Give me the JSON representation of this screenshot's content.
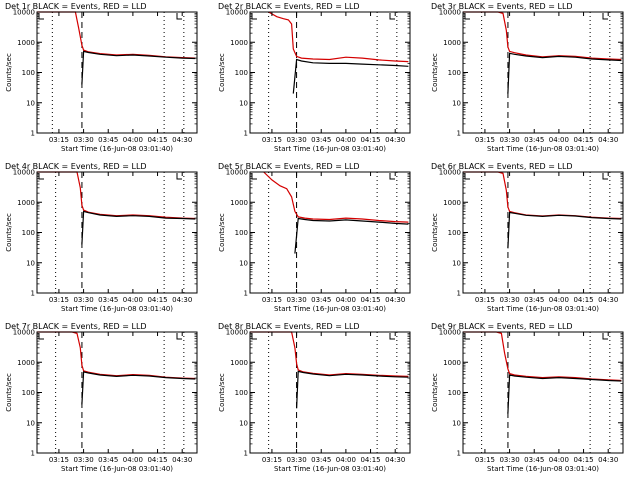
{
  "figure": {
    "background": "#ffffff",
    "colors": {
      "events": "#000000",
      "lld": "#d40000",
      "axes": "#000000"
    },
    "series_legend": "BLACK = Events, RED = LLD"
  },
  "chart_data": [
    {
      "type": "line",
      "title": "Det 1r BLACK = Events, RED = LLD",
      "xlabel": "Start Time (16-Jun-08 03:01:40)",
      "ylabel": "Counts/sec",
      "yscale": "log",
      "ylim": [
        1,
        10000
      ],
      "xlim": [
        "03:01:40",
        "04:39:00"
      ],
      "xticks": [
        "03:15",
        "03:30",
        "03:45",
        "04:00",
        "04:15",
        "04:30"
      ],
      "yticks": [
        "1",
        "10",
        "100",
        "1000",
        "10000"
      ],
      "x": [
        "03:01:40",
        "03:10",
        "03:20",
        "03:25",
        "03:27",
        "03:29",
        "03:30",
        "03:33",
        "03:40",
        "03:50",
        "04:00",
        "04:10",
        "04:20",
        "04:30",
        "04:38"
      ],
      "series": [
        {
          "values": [
            10000,
            10000,
            10000,
            10000,
            3000,
            800,
            550,
            480,
            420,
            380,
            400,
            370,
            330,
            310,
            300
          ]
        },
        {
          "values": [
            null,
            null,
            null,
            null,
            null,
            40,
            500,
            460,
            400,
            360,
            380,
            350,
            320,
            300,
            290
          ]
        }
      ],
      "vlines": [
        {
          "time": "03:11",
          "style": "dotted"
        },
        {
          "time": "03:29",
          "style": "dashed"
        },
        {
          "time": "04:19",
          "style": "dotted"
        },
        {
          "time": "04:31",
          "style": "dotted"
        }
      ]
    },
    {
      "type": "line",
      "title": "Det 2r BLACK = Events, RED = LLD",
      "xlabel": "Start Time (16-Jun-08 03:01:40)",
      "ylabel": "Counts/sec",
      "yscale": "log",
      "ylim": [
        1,
        10000
      ],
      "xlim": [
        "03:01:40",
        "04:39:00"
      ],
      "xticks": [
        "03:15",
        "03:30",
        "03:45",
        "04:00",
        "04:15",
        "04:30"
      ],
      "yticks": [
        "1",
        "10",
        "100",
        "1000",
        "10000"
      ],
      "x": [
        "03:13",
        "03:18",
        "03:22",
        "03:25",
        "03:27",
        "03:28",
        "03:30",
        "03:33",
        "03:40",
        "03:50",
        "04:00",
        "04:10",
        "04:20",
        "04:30",
        "04:38"
      ],
      "series": [
        {
          "values": [
            10000,
            7000,
            6000,
            5500,
            4000,
            600,
            340,
            300,
            280,
            270,
            320,
            300,
            260,
            240,
            230
          ]
        },
        {
          "values": [
            null,
            null,
            null,
            null,
            null,
            20,
            270,
            240,
            210,
            200,
            200,
            190,
            180,
            170,
            160
          ]
        }
      ],
      "vlines": [
        {
          "time": "03:13",
          "style": "dotted"
        },
        {
          "time": "03:30",
          "style": "dashed"
        },
        {
          "time": "04:19",
          "style": "dotted"
        },
        {
          "time": "04:31",
          "style": "dotted"
        }
      ]
    },
    {
      "type": "line",
      "title": "Det 3r BLACK = Events, RED = LLD",
      "xlabel": "Start Time (16-Jun-08 03:01:40)",
      "ylabel": "Counts/sec",
      "yscale": "log",
      "ylim": [
        1,
        10000
      ],
      "xlim": [
        "03:01:40",
        "04:39:00"
      ],
      "xticks": [
        "03:15",
        "03:30",
        "03:45",
        "04:00",
        "04:15",
        "04:30"
      ],
      "yticks": [
        "1",
        "10",
        "100",
        "1000",
        "10000"
      ],
      "x": [
        "03:01:40",
        "03:15",
        "03:23",
        "03:26",
        "03:28",
        "03:29",
        "03:30",
        "03:33",
        "03:40",
        "03:50",
        "04:00",
        "04:10",
        "04:20",
        "04:30",
        "04:38"
      ],
      "series": [
        {
          "values": [
            10000,
            10000,
            10000,
            9000,
            2500,
            700,
            500,
            450,
            380,
            330,
            360,
            340,
            300,
            280,
            270
          ]
        },
        {
          "values": [
            null,
            null,
            null,
            null,
            null,
            20,
            430,
            400,
            350,
            310,
            340,
            320,
            280,
            260,
            250
          ]
        }
      ],
      "vlines": [
        {
          "time": "03:13",
          "style": "dotted"
        },
        {
          "time": "03:29",
          "style": "dashed"
        },
        {
          "time": "04:19",
          "style": "dotted"
        },
        {
          "time": "04:31",
          "style": "dotted"
        }
      ]
    },
    {
      "type": "line",
      "title": "Det 4r BLACK = Events, RED = LLD",
      "xlabel": "Start Time (16-Jun-08 03:01:40)",
      "ylabel": "Counts/sec",
      "yscale": "log",
      "ylim": [
        1,
        10000
      ],
      "xlim": [
        "03:01:40",
        "04:39:00"
      ],
      "xticks": [
        "03:15",
        "03:30",
        "03:45",
        "04:00",
        "04:15",
        "04:30"
      ],
      "yticks": [
        "1",
        "10",
        "100",
        "1000",
        "10000"
      ],
      "x": [
        "03:01:40",
        "03:15",
        "03:23",
        "03:26",
        "03:28",
        "03:29",
        "03:30",
        "03:33",
        "03:40",
        "03:50",
        "04:00",
        "04:10",
        "04:20",
        "04:30",
        "04:38"
      ],
      "series": [
        {
          "values": [
            10000,
            10000,
            10000,
            10000,
            3000,
            800,
            550,
            470,
            400,
            360,
            380,
            360,
            320,
            300,
            290
          ]
        },
        {
          "values": [
            null,
            null,
            null,
            null,
            null,
            40,
            500,
            450,
            380,
            340,
            360,
            340,
            300,
            290,
            280
          ]
        }
      ],
      "vlines": [
        {
          "time": "03:13",
          "style": "dotted"
        },
        {
          "time": "03:29",
          "style": "dashed"
        },
        {
          "time": "04:19",
          "style": "dotted"
        },
        {
          "time": "04:31",
          "style": "dotted"
        }
      ]
    },
    {
      "type": "line",
      "title": "Det 5r BLACK = Events, RED = LLD",
      "xlabel": "Start Time (16-Jun-08 03:01:40)",
      "ylabel": "Counts/sec",
      "yscale": "log",
      "ylim": [
        1,
        10000
      ],
      "xlim": [
        "03:01:40",
        "04:39:00"
      ],
      "xticks": [
        "03:15",
        "03:30",
        "03:45",
        "04:00",
        "04:15",
        "04:30"
      ],
      "yticks": [
        "1",
        "10",
        "100",
        "1000",
        "10000"
      ],
      "x": [
        "03:10",
        "03:15",
        "03:20",
        "03:24",
        "03:27",
        "03:29",
        "03:31",
        "03:35",
        "03:40",
        "03:50",
        "04:00",
        "04:10",
        "04:20",
        "04:30",
        "04:38"
      ],
      "series": [
        {
          "values": [
            10000,
            5500,
            3500,
            2800,
            1500,
            500,
            330,
            300,
            280,
            270,
            300,
            280,
            250,
            230,
            220
          ]
        },
        {
          "values": [
            null,
            null,
            null,
            null,
            null,
            20,
            290,
            270,
            250,
            240,
            260,
            240,
            220,
            200,
            190
          ]
        }
      ],
      "vlines": [
        {
          "time": "03:13",
          "style": "dotted"
        },
        {
          "time": "03:30",
          "style": "dashed"
        },
        {
          "time": "04:19",
          "style": "dotted"
        },
        {
          "time": "04:31",
          "style": "dotted"
        }
      ]
    },
    {
      "type": "line",
      "title": "Det 6r BLACK = Events, RED = LLD",
      "xlabel": "Start Time (16-Jun-08 03:01:40)",
      "ylabel": "Counts/sec",
      "yscale": "log",
      "ylim": [
        1,
        10000
      ],
      "xlim": [
        "03:01:40",
        "04:39:00"
      ],
      "xticks": [
        "03:15",
        "03:30",
        "03:45",
        "04:00",
        "04:15",
        "04:30"
      ],
      "yticks": [
        "1",
        "10",
        "100",
        "1000",
        "10000"
      ],
      "x": [
        "03:01:40",
        "03:15",
        "03:23",
        "03:26",
        "03:28",
        "03:29",
        "03:30",
        "03:33",
        "03:40",
        "03:50",
        "04:00",
        "04:10",
        "04:20",
        "04:30",
        "04:38"
      ],
      "series": [
        {
          "values": [
            10000,
            10000,
            10000,
            9000,
            2500,
            700,
            500,
            450,
            380,
            350,
            380,
            360,
            320,
            300,
            290
          ]
        },
        {
          "values": [
            null,
            null,
            null,
            null,
            null,
            30,
            460,
            430,
            370,
            340,
            370,
            350,
            310,
            290,
            280
          ]
        }
      ],
      "vlines": [
        {
          "time": "03:13",
          "style": "dotted"
        },
        {
          "time": "03:29",
          "style": "dashed"
        },
        {
          "time": "04:19",
          "style": "dotted"
        },
        {
          "time": "04:31",
          "style": "dotted"
        }
      ]
    },
    {
      "type": "line",
      "title": "Det 7r BLACK = Events, RED = LLD",
      "xlabel": "Start Time (16-Jun-08 03:01:40)",
      "ylabel": "Counts/sec",
      "yscale": "log",
      "ylim": [
        1,
        10000
      ],
      "xlim": [
        "03:01:40",
        "04:39:00"
      ],
      "xticks": [
        "03:15",
        "03:30",
        "03:45",
        "04:00",
        "04:15",
        "04:30"
      ],
      "yticks": [
        "1",
        "10",
        "100",
        "1000",
        "10000"
      ],
      "x": [
        "03:01:40",
        "03:15",
        "03:23",
        "03:26",
        "03:28",
        "03:29",
        "03:30",
        "03:33",
        "03:40",
        "03:50",
        "04:00",
        "04:10",
        "04:20",
        "04:30",
        "04:38"
      ],
      "series": [
        {
          "values": [
            10000,
            10000,
            10000,
            9000,
            3000,
            800,
            520,
            470,
            400,
            360,
            390,
            370,
            320,
            300,
            290
          ]
        },
        {
          "values": [
            null,
            null,
            null,
            null,
            null,
            40,
            480,
            440,
            380,
            340,
            370,
            350,
            310,
            290,
            280
          ]
        }
      ],
      "vlines": [
        {
          "time": "03:13",
          "style": "dotted"
        },
        {
          "time": "03:29",
          "style": "dashed"
        },
        {
          "time": "04:19",
          "style": "dotted"
        },
        {
          "time": "04:31",
          "style": "dotted"
        }
      ]
    },
    {
      "type": "line",
      "title": "Det 8r BLACK = Events, RED = LLD",
      "xlabel": "Start Time (16-Jun-08 03:01:40)",
      "ylabel": "Counts/sec",
      "yscale": "log",
      "ylim": [
        1,
        10000
      ],
      "xlim": [
        "03:01:40",
        "04:39:00"
      ],
      "xticks": [
        "03:15",
        "03:30",
        "03:45",
        "04:00",
        "04:15",
        "04:30"
      ],
      "yticks": [
        "1",
        "10",
        "100",
        "1000",
        "10000"
      ],
      "x": [
        "03:01:40",
        "03:15",
        "03:24",
        "03:27",
        "03:29",
        "03:30",
        "03:31",
        "03:34",
        "03:40",
        "03:50",
        "04:00",
        "04:10",
        "04:20",
        "04:30",
        "04:38"
      ],
      "series": [
        {
          "values": [
            10000,
            10000,
            10000,
            10000,
            3000,
            900,
            560,
            480,
            430,
            380,
            420,
            400,
            370,
            350,
            340
          ]
        },
        {
          "values": [
            null,
            null,
            null,
            null,
            null,
            30,
            500,
            460,
            410,
            360,
            400,
            380,
            350,
            330,
            320
          ]
        }
      ],
      "vlines": [
        {
          "time": "03:13",
          "style": "dotted"
        },
        {
          "time": "03:30",
          "style": "dashed"
        },
        {
          "time": "04:19",
          "style": "dotted"
        },
        {
          "time": "04:31",
          "style": "dotted"
        }
      ]
    },
    {
      "type": "line",
      "title": "Det 9r BLACK = Events, RED = LLD",
      "xlabel": "Start Time (16-Jun-08 03:01:40)",
      "ylabel": "Counts/sec",
      "yscale": "log",
      "ylim": [
        1,
        10000
      ],
      "xlim": [
        "03:01:40",
        "04:39:00"
      ],
      "xticks": [
        "03:15",
        "03:30",
        "03:45",
        "04:00",
        "04:15",
        "04:30"
      ],
      "yticks": [
        "1",
        "10",
        "100",
        "1000",
        "10000"
      ],
      "x": [
        "03:01:40",
        "03:15",
        "03:22",
        "03:25",
        "03:27",
        "03:29",
        "03:30",
        "03:33",
        "03:40",
        "03:50",
        "04:00",
        "04:10",
        "04:20",
        "04:30",
        "04:38"
      ],
      "series": [
        {
          "values": [
            10000,
            10000,
            10000,
            9000,
            2000,
            600,
            420,
            380,
            340,
            310,
            330,
            310,
            280,
            260,
            250
          ]
        },
        {
          "values": [
            null,
            null,
            null,
            null,
            null,
            20,
            380,
            350,
            320,
            290,
            310,
            290,
            270,
            250,
            240
          ]
        }
      ],
      "vlines": [
        {
          "time": "03:13",
          "style": "dotted"
        },
        {
          "time": "03:29",
          "style": "dashed"
        },
        {
          "time": "04:19",
          "style": "dotted"
        },
        {
          "time": "04:31",
          "style": "dotted"
        }
      ]
    }
  ]
}
